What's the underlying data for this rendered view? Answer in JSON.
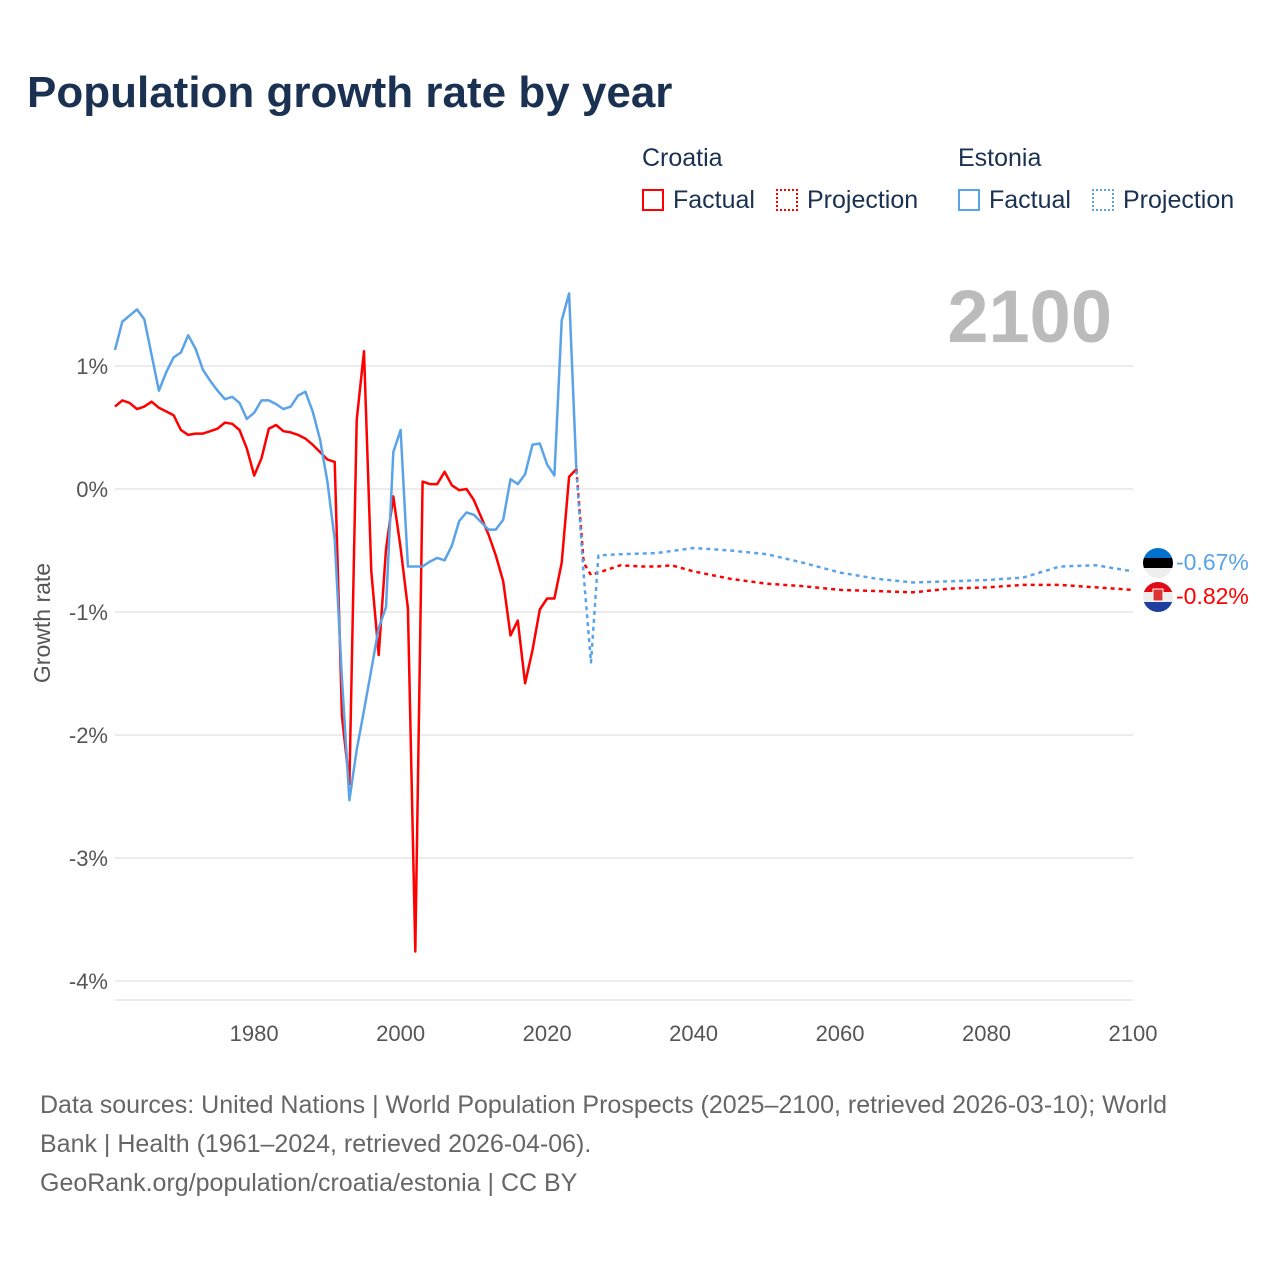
{
  "title": "Population growth rate by year",
  "legend": {
    "groups": [
      {
        "name": "Croatia",
        "factual": "Factual",
        "projection": "Projection",
        "color": "#ff0000"
      },
      {
        "name": "Estonia",
        "factual": "Factual",
        "projection": "Projection",
        "color": "#5ba3e8"
      }
    ]
  },
  "year_overlay": "2100",
  "end_labels": {
    "estonia": "-0.67%",
    "croatia": "-0.82%"
  },
  "footer": {
    "line1": "Data sources: United Nations | World Population Prospects (2025–2100, retrieved 2026-03-10); World",
    "line2": "Bank | Health (1961–2024, retrieved 2026-04-06).",
    "line3": "GeoRank.org/population/croatia/estonia | CC BY"
  },
  "chart_data": {
    "type": "line",
    "title": "Population growth rate by year",
    "xlabel": "",
    "ylabel": "Growth rate",
    "xlim": [
      1961,
      2100
    ],
    "ylim": [
      -4.2,
      1.7
    ],
    "xticks": [
      1980,
      2000,
      2020,
      2040,
      2060,
      2080,
      2100
    ],
    "xtick_labels": [
      "1980",
      "2000",
      "2020",
      "2040",
      "2060",
      "2080",
      "2100"
    ],
    "yticks": [
      1,
      0,
      -1,
      -2,
      -3,
      -4
    ],
    "ytick_labels": [
      "1%",
      "0%",
      "-1%",
      "-2%",
      "-3%",
      "-4%"
    ],
    "grid": true,
    "series": [
      {
        "name": "Croatia Factual",
        "country": "Croatia",
        "kind": "factual",
        "color": "#ff0000",
        "x_start": 1961,
        "values": [
          0.67,
          0.72,
          0.7,
          0.65,
          0.67,
          0.71,
          0.66,
          0.63,
          0.6,
          0.48,
          0.44,
          0.45,
          0.45,
          0.47,
          0.49,
          0.54,
          0.53,
          0.48,
          0.33,
          0.11,
          0.25,
          0.49,
          0.52,
          0.47,
          0.46,
          0.44,
          0.41,
          0.36,
          0.3,
          0.24,
          0.22,
          -1.85,
          -2.4,
          0.56,
          1.12,
          -0.67,
          -1.35,
          -0.49,
          -0.06,
          -0.48,
          -0.97,
          -3.76,
          0.06,
          0.04,
          0.04,
          0.14,
          0.03,
          -0.01,
          0.0,
          -0.09,
          -0.23,
          -0.37,
          -0.54,
          -0.75,
          -1.19,
          -1.07,
          -1.58,
          -1.31,
          -0.98,
          -0.89,
          -0.89,
          -0.6,
          0.1,
          0.16
        ]
      },
      {
        "name": "Estonia Factual",
        "country": "Estonia",
        "kind": "factual",
        "color": "#5ba3e8",
        "x_start": 1961,
        "values": [
          1.13,
          1.36,
          1.41,
          1.46,
          1.38,
          1.09,
          0.8,
          0.95,
          1.07,
          1.11,
          1.25,
          1.14,
          0.97,
          0.88,
          0.8,
          0.73,
          0.75,
          0.7,
          0.57,
          0.62,
          0.72,
          0.72,
          0.69,
          0.65,
          0.67,
          0.76,
          0.79,
          0.63,
          0.4,
          0.06,
          -0.41,
          -1.55,
          -2.53,
          -2.12,
          -1.8,
          -1.47,
          -1.13,
          -0.96,
          0.3,
          0.48,
          -0.63,
          -0.63,
          -0.63,
          -0.59,
          -0.56,
          -0.58,
          -0.46,
          -0.26,
          -0.19,
          -0.21,
          -0.27,
          -0.33,
          -0.33,
          -0.25,
          0.08,
          0.04,
          0.12,
          0.36,
          0.37,
          0.2,
          0.11,
          1.37,
          1.59,
          0.15
        ]
      },
      {
        "name": "Croatia Projection",
        "country": "Croatia",
        "kind": "projection",
        "color": "#ff0000",
        "x": [
          2024,
          2025,
          2026,
          2028,
          2030,
          2033,
          2035,
          2037,
          2040,
          2045,
          2050,
          2055,
          2060,
          2065,
          2070,
          2075,
          2080,
          2085,
          2090,
          2095,
          2100
        ],
        "values": [
          0.16,
          -0.6,
          -0.7,
          -0.66,
          -0.62,
          -0.63,
          -0.63,
          -0.62,
          -0.67,
          -0.73,
          -0.77,
          -0.79,
          -0.82,
          -0.83,
          -0.84,
          -0.81,
          -0.8,
          -0.78,
          -0.78,
          -0.8,
          -0.82
        ]
      },
      {
        "name": "Estonia Projection",
        "country": "Estonia",
        "kind": "projection",
        "color": "#5ba3e8",
        "x": [
          2024,
          2025,
          2026,
          2027,
          2030,
          2035,
          2040,
          2045,
          2050,
          2055,
          2060,
          2065,
          2070,
          2075,
          2080,
          2085,
          2090,
          2095,
          2100
        ],
        "values": [
          0.15,
          -0.7,
          -1.41,
          -0.54,
          -0.53,
          -0.52,
          -0.48,
          -0.5,
          -0.53,
          -0.6,
          -0.68,
          -0.73,
          -0.76,
          -0.75,
          -0.74,
          -0.72,
          -0.63,
          -0.62,
          -0.67
        ]
      }
    ]
  }
}
